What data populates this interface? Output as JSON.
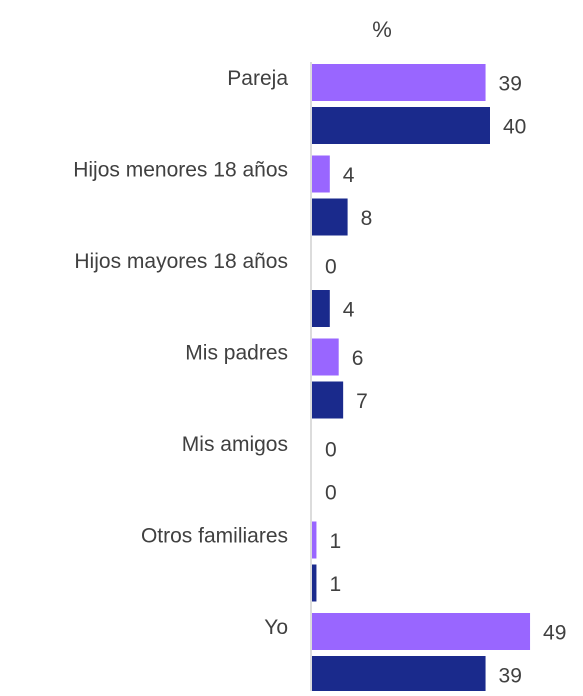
{
  "chart_data": {
    "type": "bar",
    "orientation": "horizontal",
    "unit_label": "%",
    "categories": [
      "Pareja",
      "Hijos menores 18 años",
      "Hijos mayores 18 años",
      "Mis padres",
      "Mis amigos",
      "Otros familiares",
      "Yo"
    ],
    "series": [
      {
        "color": "#9966ff",
        "values": [
          39,
          4,
          0,
          6,
          0,
          1,
          49
        ]
      },
      {
        "color": "#1a2a8c",
        "values": [
          40,
          8,
          4,
          7,
          0,
          1,
          39
        ]
      }
    ],
    "xlim": [
      0,
      60
    ],
    "grid": false,
    "legend": "none"
  }
}
